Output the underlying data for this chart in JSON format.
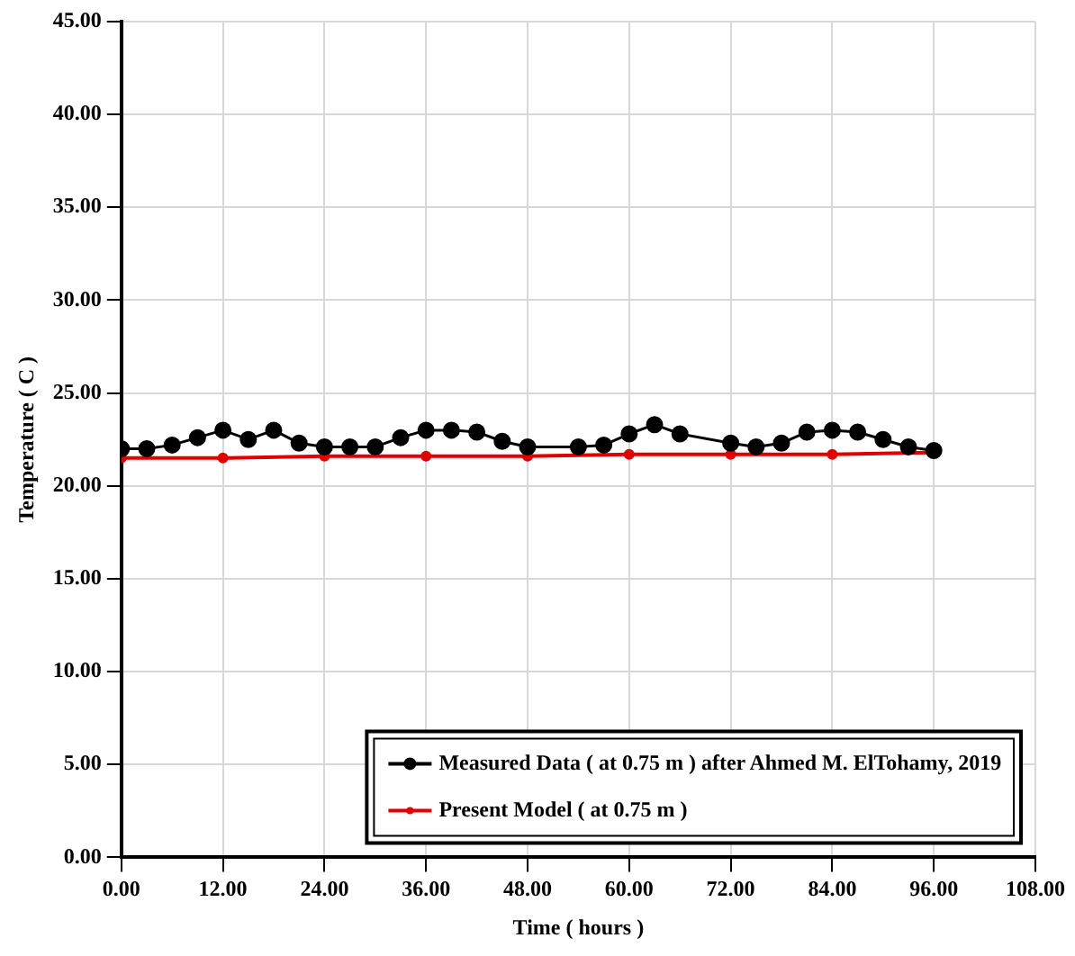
{
  "chart_data": {
    "type": "line",
    "xlabel": "Time ( hours )",
    "ylabel": "Temperature ( C )",
    "xlim": [
      0,
      108
    ],
    "xticks": [
      {
        "value": 0,
        "label": "0.00"
      },
      {
        "value": 12,
        "label": "12.00"
      },
      {
        "value": 24,
        "label": "24.00"
      },
      {
        "value": 36,
        "label": "36.00"
      },
      {
        "value": 48,
        "label": "48.00"
      },
      {
        "value": 60,
        "label": "60.00"
      },
      {
        "value": 72,
        "label": "72.00"
      },
      {
        "value": 84,
        "label": "84.00"
      },
      {
        "value": 96,
        "label": "96.00"
      },
      {
        "value": 108,
        "label": "108.00"
      }
    ],
    "ylim": [
      0,
      45
    ],
    "yticks": [
      {
        "value": 0,
        "label": "0.00"
      },
      {
        "value": 5,
        "label": "5.00"
      },
      {
        "value": 10,
        "label": "10.00"
      },
      {
        "value": 15,
        "label": "15.00"
      },
      {
        "value": 20,
        "label": "20.00"
      },
      {
        "value": 25,
        "label": "25.00"
      },
      {
        "value": 30,
        "label": "30.00"
      },
      {
        "value": 35,
        "label": "35.00"
      },
      {
        "value": 40,
        "label": "40.00"
      },
      {
        "value": 45,
        "label": "45.00"
      }
    ],
    "grid": true,
    "legend": "bottom right",
    "line_style": "solid",
    "series": [
      {
        "name": "Measured Data ( at 0.75 m ) after Ahmed M. ElTohamy, 2019",
        "color": "#000000",
        "marker": "circle",
        "x": [
          0,
          3,
          6,
          9,
          12,
          15,
          18,
          21,
          24,
          27,
          30,
          33,
          36,
          39,
          42,
          45,
          48,
          54,
          57,
          60,
          63,
          66,
          72,
          75,
          78,
          81,
          84,
          87,
          90,
          93,
          96
        ],
        "values": [
          22.0,
          22.0,
          22.2,
          22.6,
          23.0,
          22.5,
          23.0,
          22.3,
          22.1,
          22.1,
          22.1,
          22.6,
          23.0,
          23.0,
          22.9,
          22.4,
          22.1,
          22.1,
          22.2,
          22.8,
          23.3,
          22.8,
          22.3,
          22.1,
          22.3,
          22.9,
          23.0,
          22.9,
          22.5,
          22.1,
          21.9
        ]
      },
      {
        "name": "Present Model ( at 0.75 m )",
        "color": "#e00000",
        "marker": "circle",
        "x": [
          0,
          12,
          24,
          36,
          48,
          60,
          72,
          84,
          96
        ],
        "values": [
          21.5,
          21.5,
          21.6,
          21.6,
          21.6,
          21.7,
          21.7,
          21.7,
          21.8
        ]
      }
    ]
  }
}
